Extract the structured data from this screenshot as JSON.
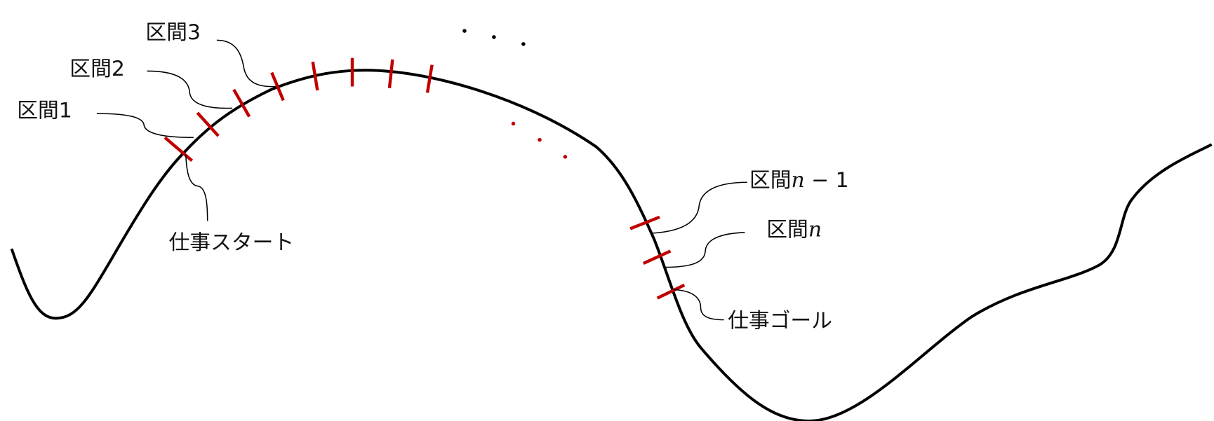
{
  "labels": {
    "segment1": "区間1",
    "segment2": "区間2",
    "segment3": "区間3",
    "segment_prefix": "区間",
    "segment_n_var": "n",
    "segment_n_minus_1_suffix": " − 1",
    "work_start": "仕事スタート",
    "work_goal": "仕事ゴール"
  },
  "ellipsis_marks": "…",
  "colors": {
    "curve": "#000000",
    "ticks": "#c00000",
    "red_dots": "#c00000",
    "black_dots": "#000000"
  }
}
